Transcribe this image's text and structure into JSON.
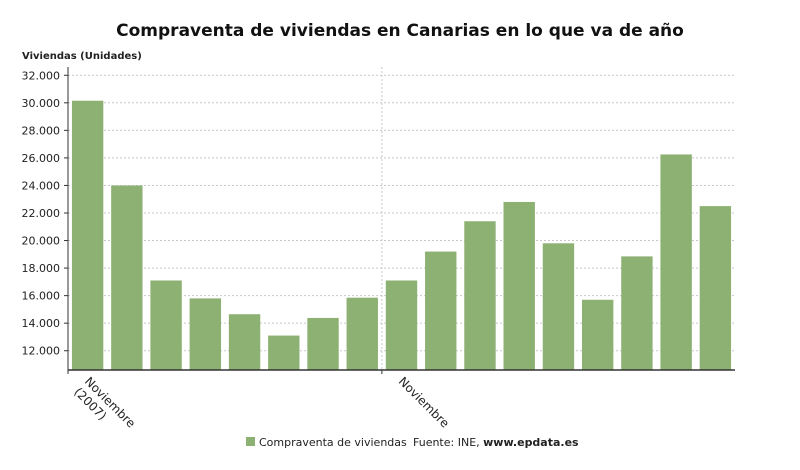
{
  "chart_data": {
    "type": "bar",
    "title": "Compraventa de viviendas en Canarias en lo que va de año",
    "ylabel": "Viviendas (Unidades)",
    "xlabel": "",
    "ylim": [
      10600,
      32600
    ],
    "yticks": [
      "12.000",
      "14.000",
      "16.000",
      "18.000",
      "20.000",
      "22.000",
      "24.000",
      "26.000",
      "28.000",
      "30.000",
      "32.000"
    ],
    "ytick_values": [
      12000,
      14000,
      16000,
      18000,
      20000,
      22000,
      24000,
      26000,
      28000,
      30000,
      32000
    ],
    "categories": [
      "Noviembre (2007)",
      "",
      "",
      "",
      "",
      "",
      "",
      "",
      "Noviembre",
      "",
      "",
      "",
      "",
      "",
      "",
      "",
      ""
    ],
    "x_tick_labels": [
      {
        "index": 0,
        "lines": [
          "Noviembre",
          "(2007)"
        ]
      },
      {
        "index": 8,
        "lines": [
          "Noviembre"
        ]
      }
    ],
    "series": [
      {
        "name": "Compraventa de viviendas",
        "color": "#8db173",
        "values": [
          30150,
          24000,
          17100,
          15800,
          14650,
          13100,
          14380,
          15850,
          17100,
          19200,
          21400,
          22800,
          19800,
          15700,
          18850,
          26250,
          22500
        ]
      }
    ],
    "grid": true,
    "legend_position": "bottom",
    "source_prefix": "Fuente: INE, ",
    "source_site": "www.epdata.es"
  }
}
